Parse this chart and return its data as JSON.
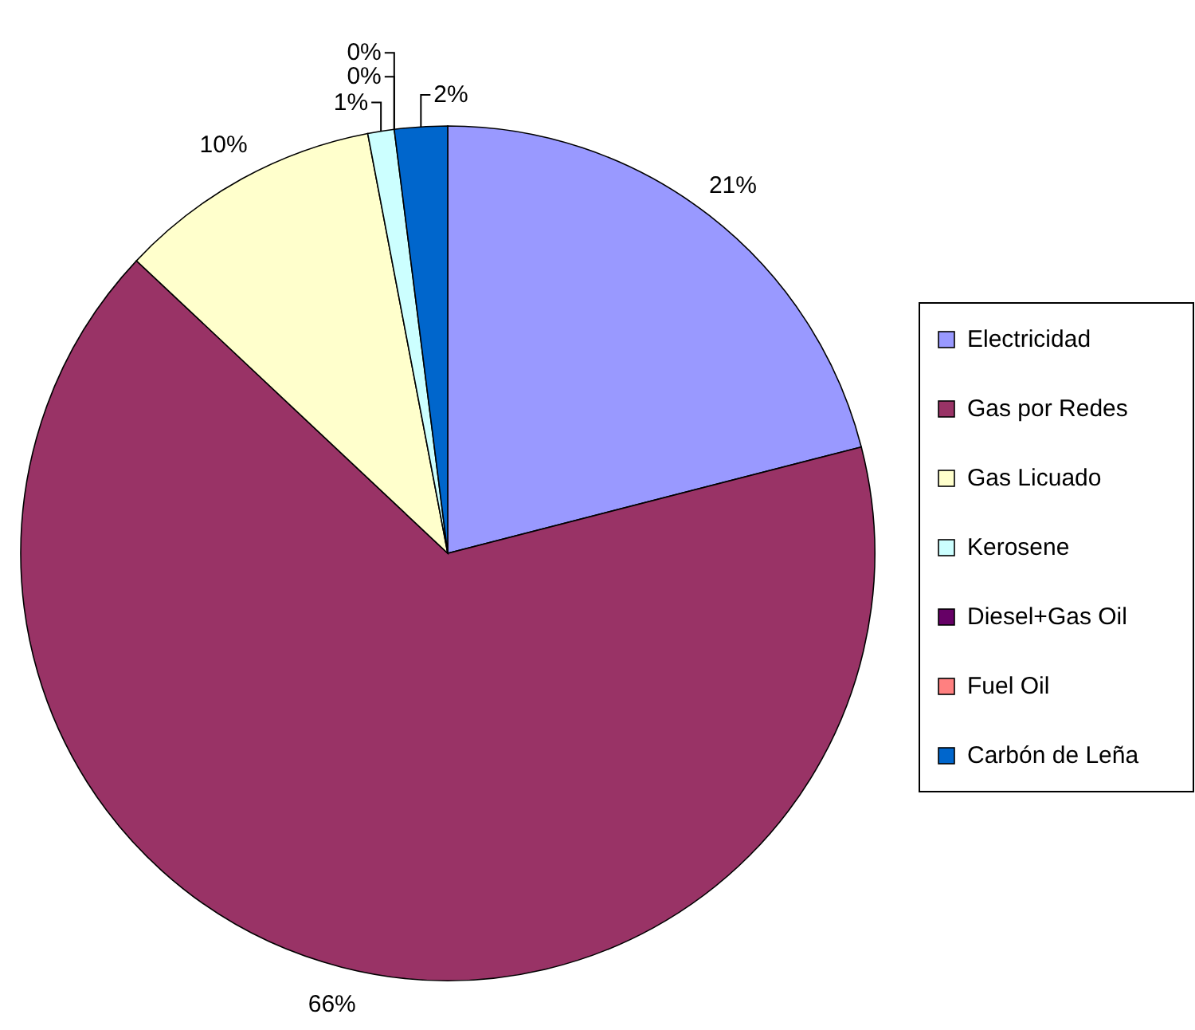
{
  "chart_data": {
    "type": "pie",
    "categories": [
      "Electricidad",
      "Gas por Redes",
      "Gas Licuado",
      "Kerosene",
      "Diesel+Gas Oil",
      "Fuel Oil",
      "Carbón de Leña"
    ],
    "values": [
      21,
      66,
      10,
      1,
      0,
      0,
      2
    ],
    "value_labels": [
      "21%",
      "66%",
      "10%",
      "1%",
      "0%",
      "0%",
      "2%"
    ],
    "colors": [
      "#9999ff",
      "#993366",
      "#ffffcc",
      "#ccffff",
      "#660066",
      "#ff8080",
      "#0066cc"
    ],
    "legend": "right"
  }
}
